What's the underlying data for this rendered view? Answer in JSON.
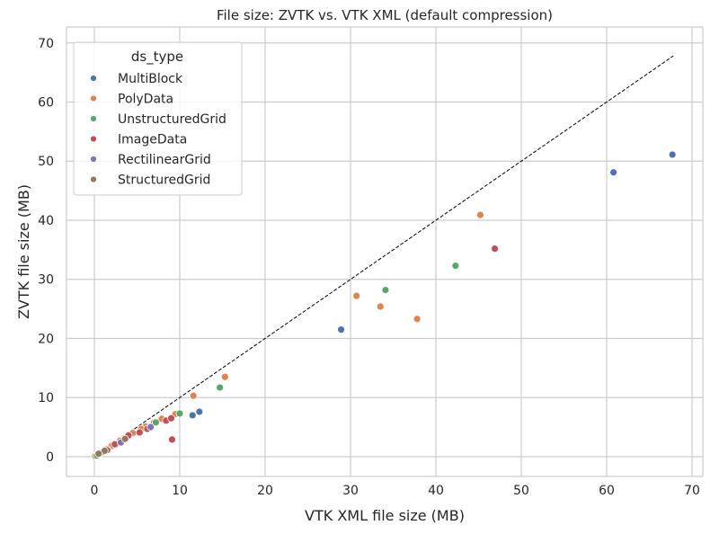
{
  "chart_data": {
    "type": "scatter",
    "title": "File size: ZVTK vs. VTK XML (default compression)",
    "xlabel": "VTK XML file size (MB)",
    "ylabel": "ZVTK file size (MB)",
    "xlim": [
      -3.26,
      71.26
    ],
    "ylim": [
      -3.35,
      72.7
    ],
    "xticks": [
      0,
      10,
      20,
      30,
      40,
      50,
      60,
      70
    ],
    "yticks": [
      0,
      10,
      20,
      30,
      40,
      50,
      60,
      70
    ],
    "grid": true,
    "legend": {
      "title": "ds_type",
      "placement": "top-left"
    },
    "reference_line": {
      "style": "dashed",
      "color": "#000000",
      "from": [
        0,
        0
      ],
      "to": [
        67.8,
        67.8
      ]
    },
    "series": [
      {
        "name": "MultiBlock",
        "color": "#4c72b0",
        "x": [
          67.7,
          60.8,
          28.9,
          11.5,
          12.3,
          3.0
        ],
        "y": [
          51.1,
          48.1,
          21.5,
          7.0,
          7.6,
          2.3
        ]
      },
      {
        "name": "PolyData",
        "color": "#dd8452",
        "x": [
          45.2,
          30.7,
          33.5,
          37.8,
          15.3,
          11.6,
          9.5,
          7.9,
          7.0,
          6.0,
          5.5,
          4.5,
          4.0,
          3.5,
          3.0,
          2.5,
          2.0,
          1.5,
          1.0,
          0.5,
          0.1
        ],
        "y": [
          40.9,
          27.2,
          25.4,
          23.3,
          13.5,
          10.3,
          7.2,
          6.4,
          5.8,
          5.1,
          4.7,
          4.0,
          3.6,
          3.1,
          2.7,
          2.2,
          1.8,
          1.3,
          0.9,
          0.4,
          0.1
        ]
      },
      {
        "name": "UnstructuredGrid",
        "color": "#55a868",
        "x": [
          42.3,
          34.1,
          14.7,
          10.0,
          7.2,
          2.5,
          0.3
        ],
        "y": [
          32.3,
          28.2,
          11.7,
          7.3,
          5.8,
          2.0,
          0.2
        ]
      },
      {
        "name": "ImageData",
        "color": "#c44e52",
        "x": [
          46.9,
          9.1,
          8.4,
          9.0,
          6.2,
          5.3,
          4.0,
          2.4,
          1.5,
          0.8
        ],
        "y": [
          35.2,
          2.9,
          6.1,
          6.5,
          4.7,
          4.1,
          3.6,
          2.1,
          1.1,
          0.6
        ]
      },
      {
        "name": "RectilinearGrid",
        "color": "#8172b3",
        "x": [
          6.6,
          3.1,
          1.0
        ],
        "y": [
          5.0,
          2.4,
          0.8
        ]
      },
      {
        "name": "StructuredGrid",
        "color": "#937860",
        "x": [
          1.2,
          0.5,
          3.6
        ],
        "y": [
          1.0,
          0.5,
          3.0
        ]
      }
    ]
  }
}
